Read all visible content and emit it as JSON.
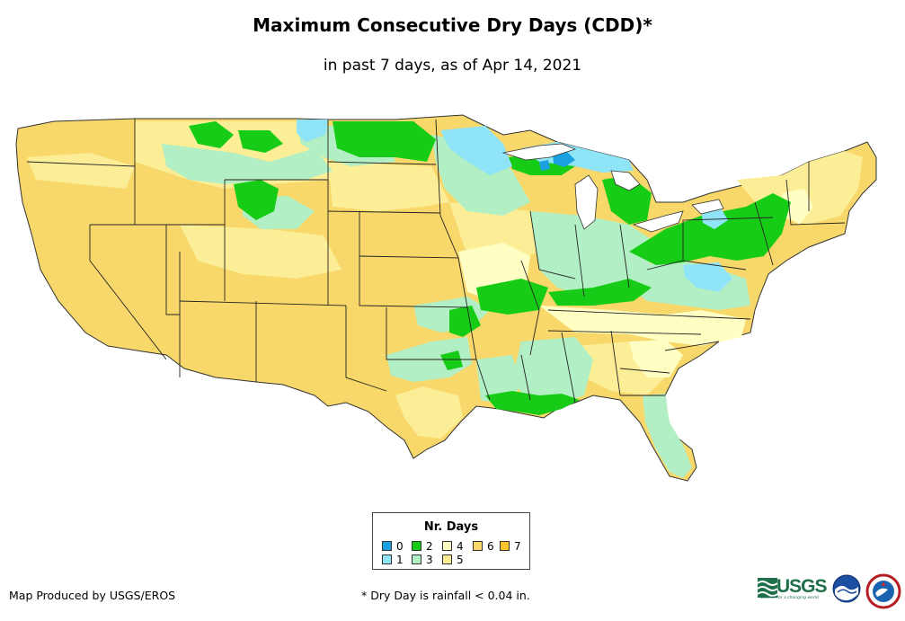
{
  "title": "Maximum Consecutive Dry Days (CDD)*",
  "subtitle": "in past 7 days, as of Apr 14, 2021",
  "legend": {
    "title": "Nr. Days",
    "items": [
      {
        "label": "0",
        "color": "#1a9fe0"
      },
      {
        "label": "1",
        "color": "#8fe4f7"
      },
      {
        "label": "2",
        "color": "#17cc17"
      },
      {
        "label": "3",
        "color": "#b3efc4"
      },
      {
        "label": "4",
        "color": "#ffffc4"
      },
      {
        "label": "5",
        "color": "#fcee96"
      },
      {
        "label": "6",
        "color": "#f8d86a"
      },
      {
        "label": "7",
        "color": "#fdc42a"
      }
    ]
  },
  "footer": {
    "producer": "Map Produced by USGS/EROS",
    "note": "* Dry Day is rainfall < 0.04 in."
  },
  "logos": {
    "usgs": "USGS",
    "usgs_tagline": "science for a changing world"
  }
}
